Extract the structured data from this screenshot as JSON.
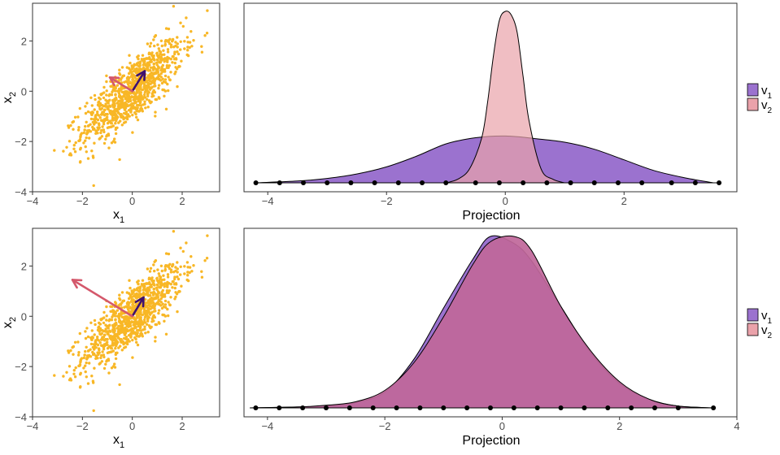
{
  "colors": {
    "scatter_points": "#F8B726",
    "v1_arrow": "#3E1170",
    "v2_arrow": "#D4586B",
    "v1_fill": "#9B72CF",
    "v2_fill": "#EAA2AA",
    "overlap_fill": "#C0679A",
    "axis_text": "#4D4D4D"
  },
  "chart_data": [
    {
      "type": "scatter",
      "panel": "top-left",
      "xlabel": "x",
      "xlabel_sub": "1",
      "ylabel": "x",
      "ylabel_sub": "2",
      "xlim": [
        -4,
        3.5
      ],
      "ylim": [
        -4,
        3.5
      ],
      "x_ticks": [
        -4,
        -2,
        0,
        2
      ],
      "y_ticks": [
        -4,
        -2,
        0,
        2
      ],
      "x_tick_labels": [
        "−4",
        "−2",
        "0",
        "2"
      ],
      "y_tick_labels": [
        "−4",
        "−2",
        "0",
        "2"
      ],
      "n_points": 1000,
      "correlation": 0.8,
      "arrows": [
        {
          "name": "v1",
          "from": [
            0,
            0
          ],
          "to": [
            0.5,
            0.8
          ]
        },
        {
          "name": "v2",
          "from": [
            0,
            0
          ],
          "to": [
            -0.9,
            0.55
          ]
        }
      ]
    },
    {
      "type": "area",
      "panel": "top-right",
      "xlabel": "Projection",
      "xlim": [
        -4.4,
        3.9
      ],
      "x_ticks": [
        -4,
        -2,
        0,
        2
      ],
      "x_tick_labels": [
        "−4",
        "−2",
        "0",
        "2"
      ],
      "series": [
        {
          "name": "v1",
          "label": "v",
          "sub": "1",
          "x": [
            -4.2,
            -3.5,
            -3.0,
            -2.5,
            -2.0,
            -1.5,
            -1.0,
            -0.5,
            0,
            0.5,
            1.0,
            1.5,
            2.0,
            2.5,
            3.0,
            3.5
          ],
          "density": [
            0.0,
            0.01,
            0.025,
            0.05,
            0.09,
            0.15,
            0.22,
            0.255,
            0.265,
            0.25,
            0.23,
            0.19,
            0.13,
            0.07,
            0.03,
            0.0
          ]
        },
        {
          "name": "v2",
          "label": "v",
          "sub": "2",
          "x": [
            -1.0,
            -0.8,
            -0.6,
            -0.4,
            -0.3,
            -0.2,
            -0.1,
            0,
            0.1,
            0.2,
            0.3,
            0.4,
            0.6,
            0.8,
            1.0
          ],
          "density": [
            0.0,
            0.02,
            0.08,
            0.25,
            0.45,
            0.72,
            0.92,
            0.97,
            0.95,
            0.85,
            0.6,
            0.35,
            0.08,
            0.02,
            0.0
          ]
        }
      ],
      "rug_points": [
        -4.2,
        -3.8,
        -3.4,
        -3.0,
        -2.6,
        -2.2,
        -1.8,
        -1.4,
        -1.0,
        -0.5,
        -0.1,
        0.3,
        0.7,
        1.1,
        1.5,
        1.9,
        2.3,
        2.8,
        3.2,
        3.6
      ]
    },
    {
      "type": "scatter",
      "panel": "bottom-left",
      "xlabel": "x",
      "xlabel_sub": "1",
      "ylabel": "x",
      "ylabel_sub": "2",
      "xlim": [
        -4,
        3.5
      ],
      "ylim": [
        -4,
        3.5
      ],
      "x_ticks": [
        -4,
        -2,
        0,
        2
      ],
      "y_ticks": [
        -4,
        -2,
        0,
        2
      ],
      "x_tick_labels": [
        "−4",
        "−2",
        "0",
        "2"
      ],
      "y_tick_labels": [
        "−4",
        "−2",
        "0",
        "2"
      ],
      "n_points": 1000,
      "correlation": 0.8,
      "arrows": [
        {
          "name": "v1",
          "from": [
            0,
            0
          ],
          "to": [
            0.45,
            0.75
          ]
        },
        {
          "name": "v2",
          "from": [
            0,
            0
          ],
          "to": [
            -2.4,
            1.45
          ]
        }
      ]
    },
    {
      "type": "area",
      "panel": "bottom-right",
      "xlabel": "Projection",
      "xlim": [
        -4.4,
        4.0
      ],
      "x_ticks": [
        -4,
        -2,
        0,
        2,
        4
      ],
      "x_tick_labels": [
        "−4",
        "−2",
        "0",
        "2",
        "4"
      ],
      "series": [
        {
          "name": "v1",
          "label": "v",
          "sub": "1",
          "x": [
            -4.3,
            -3.5,
            -3.0,
            -2.5,
            -2.0,
            -1.5,
            -1.0,
            -0.5,
            -0.2,
            0.2,
            0.5,
            1.0,
            1.5,
            2.0,
            2.5,
            3.0,
            3.6
          ],
          "density": [
            0.0,
            0.005,
            0.01,
            0.03,
            0.09,
            0.28,
            0.57,
            0.85,
            0.98,
            0.94,
            0.84,
            0.58,
            0.32,
            0.14,
            0.05,
            0.01,
            0.0
          ]
        },
        {
          "name": "v2",
          "label": "v",
          "sub": "2",
          "x": [
            -4.3,
            -3.5,
            -3.0,
            -2.5,
            -2.0,
            -1.5,
            -1.0,
            -0.5,
            -0.2,
            0.2,
            0.5,
            1.0,
            1.5,
            2.0,
            2.5,
            3.0,
            3.6
          ],
          "density": [
            0.0,
            0.005,
            0.015,
            0.035,
            0.1,
            0.26,
            0.52,
            0.82,
            0.95,
            0.98,
            0.9,
            0.58,
            0.33,
            0.15,
            0.05,
            0.01,
            0.0
          ]
        }
      ],
      "rug_points": [
        -4.2,
        -3.8,
        -3.4,
        -3.0,
        -2.6,
        -2.2,
        -1.8,
        -1.4,
        -1.0,
        -0.6,
        -0.2,
        0.2,
        0.6,
        1.0,
        1.4,
        1.8,
        2.2,
        2.6,
        3.0,
        3.6
      ]
    }
  ],
  "legend": [
    {
      "label": "v",
      "sub": "1",
      "color": "#9B72CF"
    },
    {
      "label": "v",
      "sub": "2",
      "color": "#EAA2AA"
    }
  ]
}
